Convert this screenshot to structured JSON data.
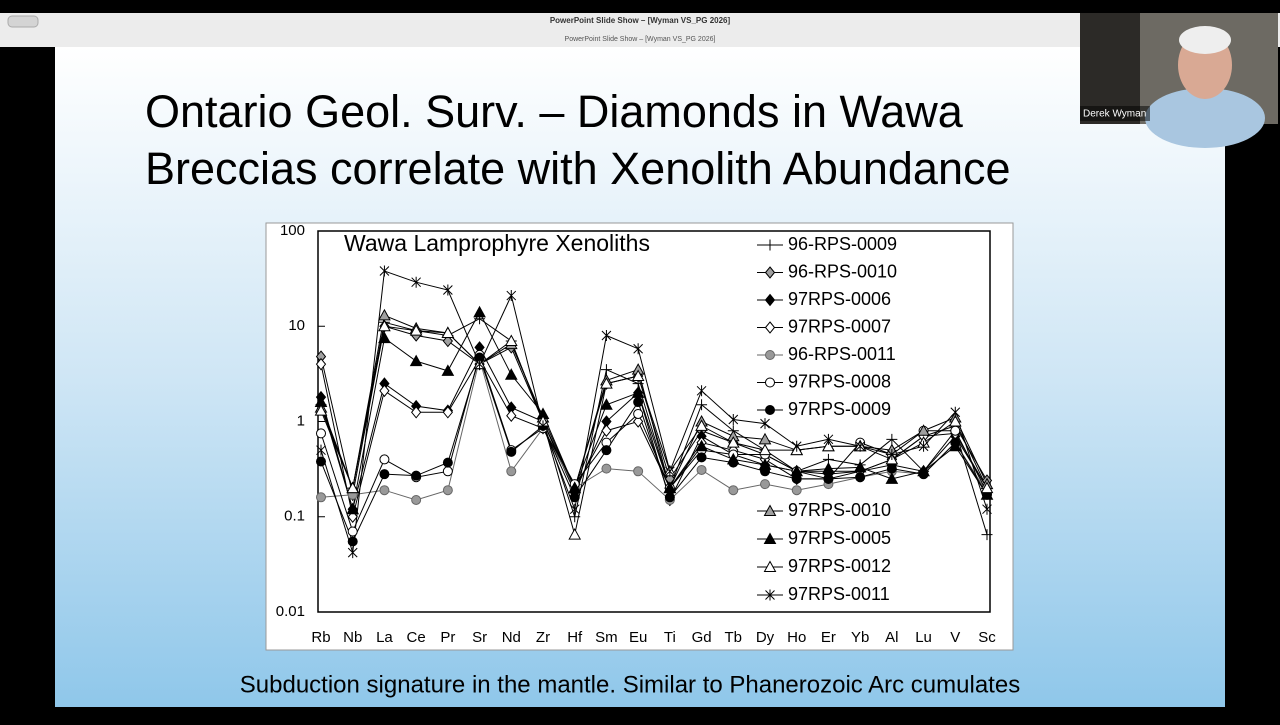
{
  "window": {
    "title": "PowerPoint Slide Show – [Wyman VS_PG 2026]",
    "subtitle": "PowerPoint Slide Show – [Wyman VS_PG 2026]"
  },
  "video": {
    "name": "Derek Wyman"
  },
  "slide": {
    "title_lines": [
      "Ontario Geol. Surv. – Diamonds in Wawa",
      "Breccias correlate with Xenolith Abundance"
    ],
    "caption": "Subduction signature in the mantle. Similar to Phanerozoic Arc cumulates"
  },
  "chart_data": {
    "type": "line",
    "title": "Wawa Lamprophyre Xenoliths",
    "log_y": true,
    "categories": [
      "Rb",
      "Nb",
      "La",
      "Ce",
      "Pr",
      "Sr",
      "Nd",
      "Zr",
      "Hf",
      "Sm",
      "Eu",
      "Ti",
      "Gd",
      "Tb",
      "Dy",
      "Ho",
      "Er",
      "Yb",
      "Al",
      "Lu",
      "V",
      "Sc"
    ],
    "ylim": [
      0.01,
      100
    ],
    "yticks": [
      0.01,
      0.1,
      1,
      10,
      100
    ],
    "series": [
      {
        "name": "96-RPS-0009",
        "marker": "plus",
        "color": "#000000",
        "fill": "#000000",
        "values": [
          1.5,
          0.2,
          11,
          9,
          8,
          12,
          7,
          1.0,
          0.1,
          3.5,
          2.5,
          0.2,
          1.5,
          0.8,
          0.5,
          0.3,
          0.4,
          0.35,
          0.65,
          0.3,
          0.8,
          0.065
        ]
      },
      {
        "name": "96-RPS-0010",
        "marker": "diamond",
        "color": "#000000",
        "fill": "#a0a0a0",
        "values": [
          4.8,
          0.17,
          10,
          8,
          7,
          4,
          6,
          1.0,
          0.2,
          2.5,
          3,
          0.25,
          0.8,
          0.6,
          0.45,
          0.3,
          0.3,
          0.3,
          0.4,
          0.7,
          0.9,
          0.24
        ]
      },
      {
        "name": "97RPS-0006",
        "marker": "diamond",
        "color": "#000000",
        "fill": "#000000",
        "values": [
          1.8,
          0.12,
          2.5,
          1.45,
          1.3,
          6,
          1.4,
          1.0,
          0.18,
          1.0,
          2.0,
          0.15,
          0.7,
          0.45,
          0.35,
          0.3,
          0.28,
          0.3,
          0.35,
          0.3,
          0.7,
          0.2
        ]
      },
      {
        "name": "97RPS-0007",
        "marker": "diamond",
        "color": "#000000",
        "fill": "#ffffff",
        "values": [
          4,
          0.1,
          2.1,
          1.25,
          1.25,
          4.5,
          1.15,
          0.85,
          0.2,
          0.8,
          1.0,
          0.2,
          0.6,
          0.5,
          0.4,
          0.25,
          0.25,
          0.3,
          0.4,
          0.7,
          0.75,
          0.2
        ]
      },
      {
        "name": "96-RPS-0011",
        "marker": "circle",
        "color": "#666666",
        "fill": "#999999",
        "values": [
          0.16,
          0.17,
          0.19,
          0.15,
          0.19,
          4.5,
          0.3,
          0.85,
          0.2,
          0.32,
          0.3,
          0.15,
          0.31,
          0.19,
          0.22,
          0.19,
          0.22,
          0.26,
          0.3,
          0.28,
          0.6,
          0.18
        ]
      },
      {
        "name": "97RPS-0008",
        "marker": "circle",
        "color": "#000000",
        "fill": "#ffffff",
        "values": [
          0.75,
          0.07,
          0.4,
          0.26,
          0.3,
          5,
          0.5,
          0.85,
          0.22,
          0.6,
          1.2,
          0.2,
          0.5,
          0.45,
          0.45,
          0.3,
          0.25,
          0.6,
          0.45,
          0.8,
          0.8,
          0.18
        ]
      },
      {
        "name": "97RPS-0009",
        "marker": "circle",
        "color": "#000000",
        "fill": "#000000",
        "values": [
          0.38,
          0.055,
          0.28,
          0.27,
          0.37,
          4.7,
          0.48,
          0.9,
          0.16,
          0.5,
          1.6,
          0.16,
          0.42,
          0.37,
          0.3,
          0.25,
          0.25,
          0.26,
          0.32,
          0.28,
          0.6,
          0.17
        ]
      },
      {
        "name": "97RPS-0010",
        "marker": "triangle",
        "color": "#000000",
        "fill": "#a0a0a0",
        "values": [
          1.4,
          0.2,
          13,
          9.5,
          8.5,
          4,
          6.5,
          1.1,
          0.2,
          2.7,
          3.5,
          0.2,
          1.0,
          0.7,
          0.65,
          0.5,
          0.55,
          0.55,
          0.5,
          0.8,
          1.1,
          0.22
        ]
      },
      {
        "name": "97RPS-0005",
        "marker": "triangle",
        "color": "#000000",
        "fill": "#000000",
        "values": [
          1.6,
          0.12,
          7.5,
          4.3,
          3.4,
          14,
          3.1,
          1.2,
          0.2,
          1.5,
          2.0,
          0.2,
          0.55,
          0.4,
          0.35,
          0.3,
          0.32,
          0.33,
          0.25,
          0.3,
          0.55,
          0.17
        ]
      },
      {
        "name": "97RPS-0012",
        "marker": "triangle",
        "color": "#000000",
        "fill": "#ffffff",
        "values": [
          1.3,
          0.2,
          10,
          9,
          8.5,
          4,
          7,
          1.0,
          0.065,
          2.5,
          3,
          0.3,
          0.9,
          0.6,
          0.5,
          0.5,
          0.55,
          0.55,
          0.4,
          0.6,
          1.0,
          0.2
        ]
      },
      {
        "name": "97RPS-0011",
        "marker": "asterisk",
        "color": "#000000",
        "fill": "#000000",
        "values": [
          0.5,
          0.042,
          38,
          29,
          24,
          4,
          21,
          0.9,
          0.12,
          8,
          5.8,
          0.3,
          2.1,
          1.05,
          0.95,
          0.55,
          0.65,
          0.55,
          0.45,
          0.55,
          1.25,
          0.12
        ]
      }
    ]
  }
}
